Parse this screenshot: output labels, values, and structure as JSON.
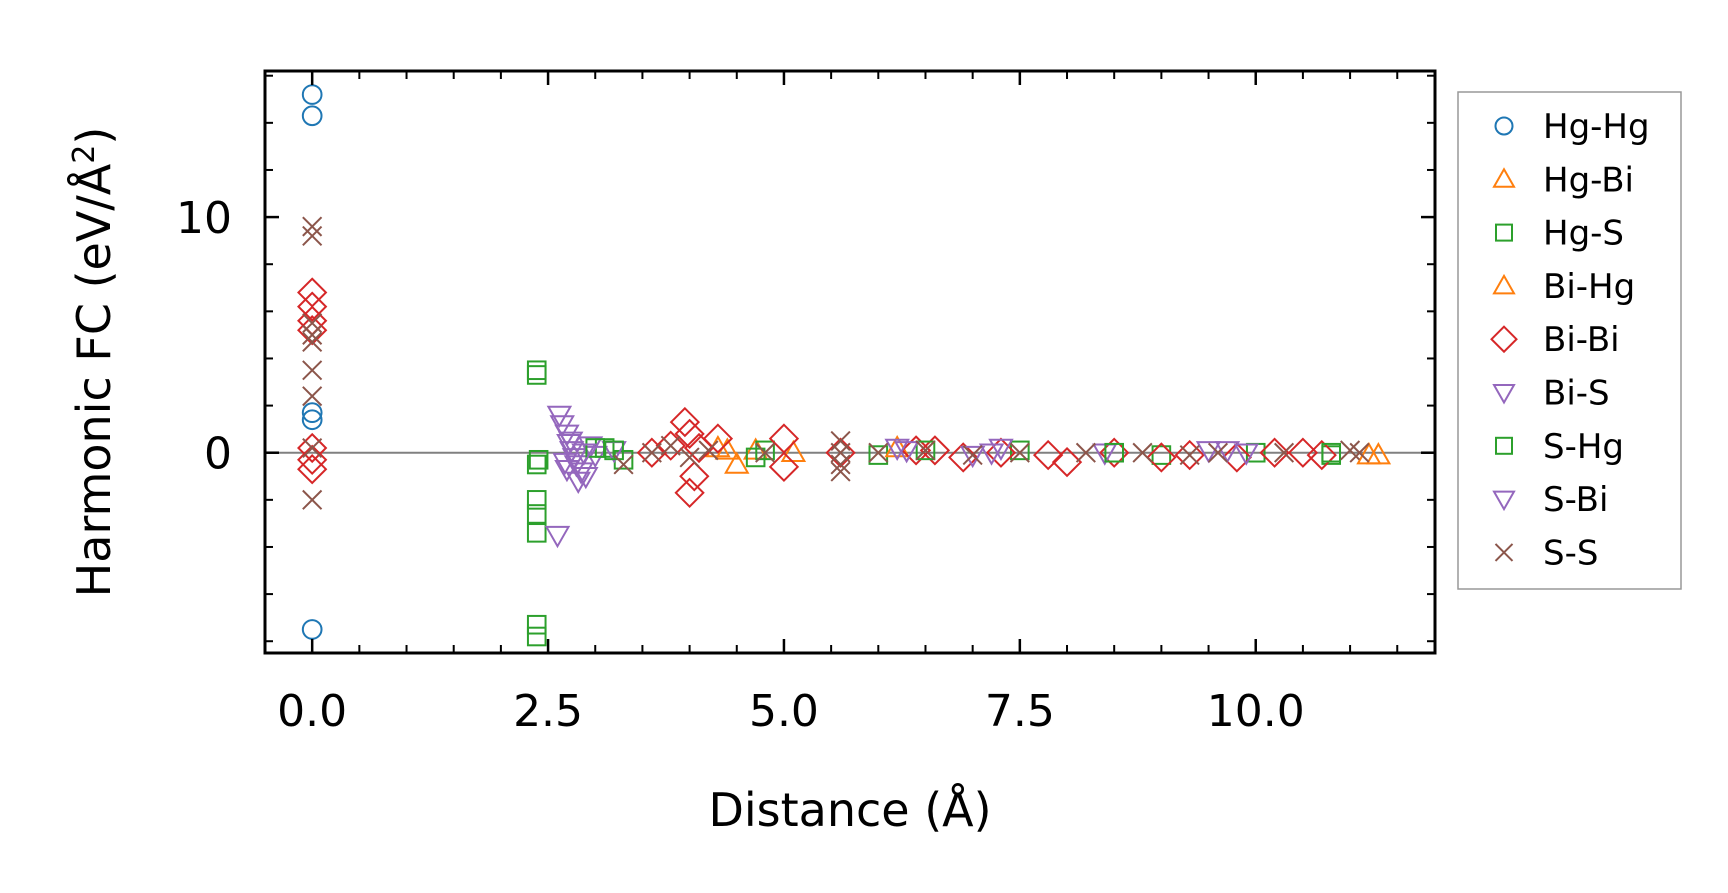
{
  "chart_data": {
    "type": "scatter",
    "title": "",
    "xlabel": "Distance (Å)",
    "ylabel_main": "Harmonic FC (eV/Å",
    "ylabel_sup": "2",
    "ylabel_close": ")",
    "xlim": [
      -0.5,
      11.9
    ],
    "ylim": [
      -8.5,
      16.2
    ],
    "x_ticks": [
      0.0,
      2.5,
      5.0,
      7.5,
      10.0
    ],
    "x_tick_labels": [
      "0.0",
      "2.5",
      "5.0",
      "7.5",
      "10.0"
    ],
    "y_ticks": [
      0,
      10
    ],
    "y_tick_labels": [
      "0",
      "10"
    ],
    "zero_line": true,
    "legend_position": "outside-right",
    "series": [
      {
        "name": "Hg-Hg",
        "marker": "circle",
        "color": "#1f77b4",
        "x": [
          0,
          0,
          0,
          0,
          0
        ],
        "y": [
          15.2,
          14.3,
          1.7,
          1.4,
          -7.5
        ]
      },
      {
        "name": "Hg-Bi",
        "marker": "triangle-up",
        "color": "#ff7f0e",
        "x": [
          4.3,
          4.5,
          4.7,
          5.1,
          11.2
        ],
        "y": [
          0.2,
          -0.5,
          0.1,
          0.0,
          -0.1
        ]
      },
      {
        "name": "Hg-S",
        "marker": "square",
        "color": "#2ca02c",
        "x": [
          2.38,
          2.38,
          2.38,
          2.38,
          2.38,
          2.38,
          2.38,
          2.38,
          3.1,
          3.3,
          4.8,
          6.0,
          7.5,
          9.0,
          10.0,
          10.8
        ],
        "y": [
          3.5,
          3.3,
          -0.5,
          -2.0,
          -2.6,
          -3.4,
          -7.3,
          -7.8,
          0.2,
          -0.3,
          0.1,
          -0.1,
          0.1,
          -0.1,
          0.0,
          -0.1
        ]
      },
      {
        "name": "Bi-Hg",
        "marker": "triangle-up",
        "color": "#ff7f0e",
        "x": [
          4.4,
          6.2,
          11.3
        ],
        "y": [
          0.1,
          0.2,
          -0.1
        ]
      },
      {
        "name": "Bi-Bi",
        "marker": "diamond",
        "color": "#d62728",
        "x": [
          0,
          0,
          0,
          0,
          0,
          0,
          0,
          3.6,
          3.8,
          3.95,
          4.0,
          4.05,
          4.1,
          4.0,
          4.3,
          5.0,
          5.0,
          5.6,
          6.4,
          6.6,
          6.9,
          7.3,
          7.8,
          8.0,
          8.5,
          9.0,
          9.3,
          9.8,
          10.2,
          10.5,
          10.7
        ],
        "y": [
          6.8,
          6.2,
          5.6,
          5.2,
          0.2,
          -0.3,
          -0.7,
          0.0,
          0.3,
          1.3,
          0.8,
          -1.0,
          0.2,
          -1.7,
          0.6,
          0.6,
          -0.6,
          0.0,
          0.1,
          0.1,
          -0.2,
          0.0,
          -0.1,
          -0.4,
          0.0,
          -0.2,
          -0.1,
          -0.2,
          0.0,
          0.0,
          -0.1
        ]
      },
      {
        "name": "Bi-S",
        "marker": "triangle-down",
        "color": "#9467bd",
        "x": [
          2.62,
          2.65,
          2.7,
          2.72,
          2.75,
          2.78,
          2.8,
          2.85,
          2.9,
          2.95,
          3.0,
          2.7,
          2.6,
          3.2,
          6.2,
          7.0,
          7.3,
          8.4,
          9.5,
          9.9
        ],
        "y": [
          1.6,
          1.2,
          0.8,
          0.4,
          0.1,
          -0.2,
          -0.5,
          -0.8,
          -1.0,
          0.3,
          -0.1,
          -0.7,
          -3.5,
          0.1,
          0.2,
          -0.1,
          0.2,
          0.0,
          0.1,
          0.0
        ]
      },
      {
        "name": "S-Hg",
        "marker": "square",
        "color": "#2ca02c",
        "x": [
          2.4,
          3.0,
          3.2,
          4.7,
          6.5,
          8.5,
          10.8
        ],
        "y": [
          -0.3,
          0.2,
          0.1,
          -0.2,
          0.1,
          0.0,
          0.0
        ]
      },
      {
        "name": "S-Bi",
        "marker": "triangle-down",
        "color": "#9467bd",
        "x": [
          2.68,
          2.74,
          2.82,
          2.88,
          6.3,
          7.2,
          9.7
        ],
        "y": [
          -0.4,
          0.5,
          -1.2,
          0.0,
          0.1,
          0.0,
          0.1
        ]
      },
      {
        "name": "S-S",
        "marker": "x",
        "color": "#8c564b",
        "x": [
          0,
          0,
          0,
          0,
          0,
          0,
          0,
          0,
          0,
          3.3,
          3.6,
          3.8,
          4.0,
          4.2,
          4.8,
          5.6,
          5.6,
          5.6,
          5.6,
          6.0,
          6.5,
          7.0,
          7.5,
          8.2,
          8.8,
          9.3,
          9.6,
          10.3,
          11.0,
          11.1
        ],
        "y": [
          9.6,
          9.2,
          5.5,
          5.0,
          4.7,
          3.5,
          2.4,
          0.2,
          -2.0,
          -0.5,
          0.0,
          0.3,
          -0.2,
          0.1,
          0.0,
          0.5,
          0.0,
          -0.5,
          -0.8,
          0.0,
          0.1,
          -0.1,
          0.0,
          0.0,
          0.0,
          -0.1,
          0.0,
          0.0,
          0.1,
          0.0
        ]
      }
    ],
    "legend": [
      {
        "label": "Hg-Hg",
        "marker": "circle",
        "color": "#1f77b4"
      },
      {
        "label": "Hg-Bi",
        "marker": "triangle-up",
        "color": "#ff7f0e"
      },
      {
        "label": "Hg-S",
        "marker": "square",
        "color": "#2ca02c"
      },
      {
        "label": "Bi-Hg",
        "marker": "triangle-up",
        "color": "#ff7f0e"
      },
      {
        "label": "Bi-Bi",
        "marker": "diamond",
        "color": "#d62728"
      },
      {
        "label": "Bi-S",
        "marker": "triangle-down",
        "color": "#9467bd"
      },
      {
        "label": "S-Hg",
        "marker": "square",
        "color": "#2ca02c"
      },
      {
        "label": "S-Bi",
        "marker": "triangle-down",
        "color": "#9467bd"
      },
      {
        "label": "S-S",
        "marker": "x",
        "color": "#8c564b"
      }
    ]
  }
}
